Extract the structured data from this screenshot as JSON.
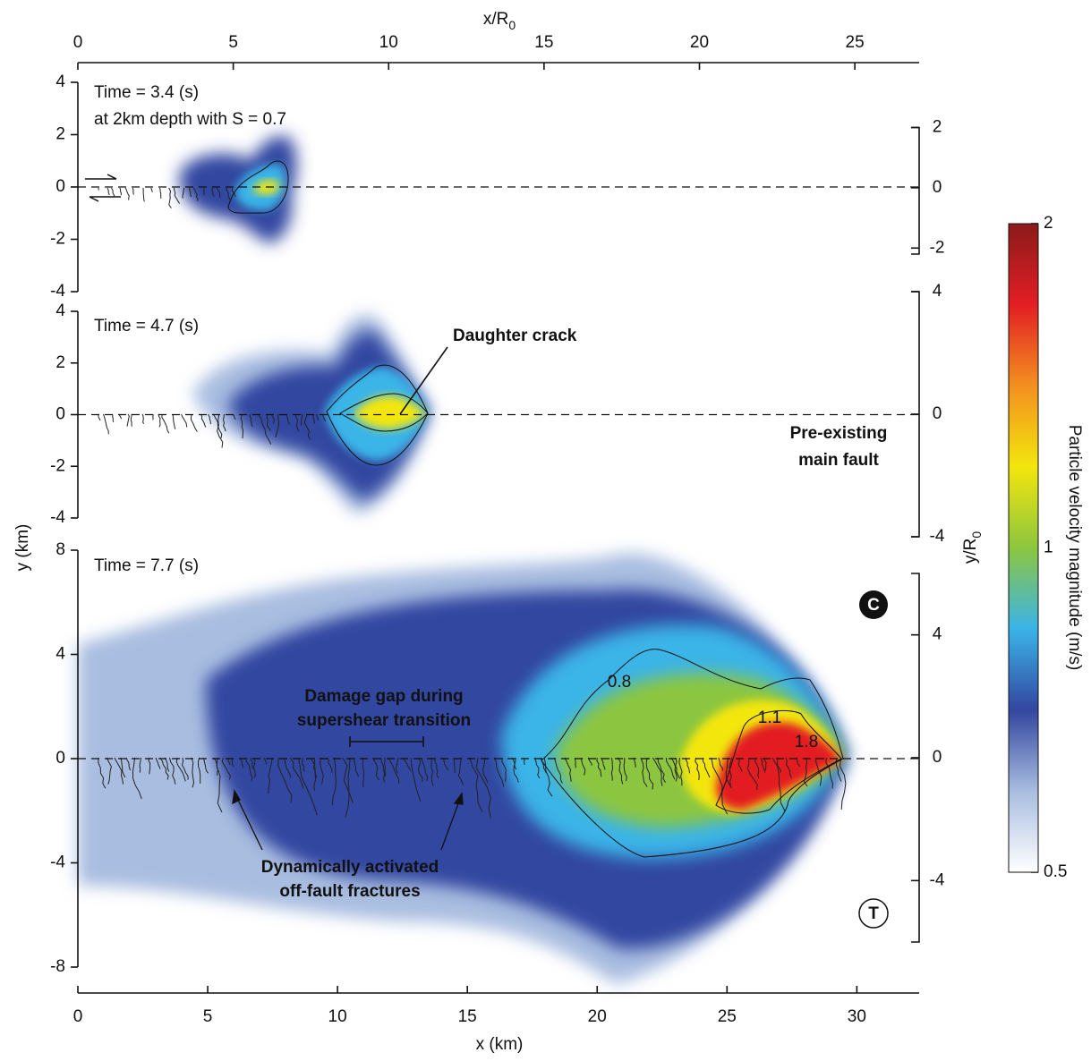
{
  "chart_data": {
    "type": "field",
    "xlabel": "x (km)",
    "xlim": [
      0,
      32.4
    ],
    "xticks": [
      0,
      5,
      10,
      15,
      20,
      25,
      30
    ],
    "x2label": "x/R",
    "x2label_sub": "0",
    "x2lim": [
      0,
      27.07
    ],
    "x2ticks": [
      0,
      5,
      10,
      15,
      20,
      25
    ],
    "ylabel": "y (km)",
    "y2label": "y/R",
    "y2label_sub": "0",
    "panels": [
      {
        "time": "Time = 3.4 (s)",
        "subtitle": "at 2km depth with S = 0.7",
        "ylim": [
          -4,
          4
        ],
        "yticks": [
          4,
          2,
          0,
          -2,
          -4
        ],
        "y2lim": [
          -2.2,
          2
        ],
        "y2ticks": [
          2,
          0,
          -2
        ]
      },
      {
        "time": "Time = 4.7 (s)",
        "ylim": [
          -4,
          4
        ],
        "yticks": [
          4,
          2,
          0,
          -2,
          -4
        ],
        "y2lim": [
          -4,
          4
        ],
        "y2ticks": [
          4,
          0,
          -4
        ]
      },
      {
        "time": "Time = 7.7 (s)",
        "ylim": [
          -8,
          8
        ],
        "yticks": [
          8,
          4,
          0,
          -4,
          -8
        ],
        "y2lim": [
          -6,
          6
        ],
        "y2ticks": [
          4,
          0,
          -4
        ]
      }
    ],
    "colorbar": {
      "label": "Particle velocity magnitude (m/s)",
      "lim": [
        0.5,
        2
      ],
      "ticks": [
        2,
        1,
        0.5
      ],
      "log": true,
      "colors": [
        "#ffffff",
        "#a9bde0",
        "#3346a0",
        "#3ab4e8",
        "#8cc63f",
        "#f3e60d",
        "#f39020",
        "#e31e24",
        "#8b1a1a"
      ]
    },
    "annotations": {
      "daughter_crack": "Daughter crack",
      "main_fault": [
        "Pre-existing",
        "main fault"
      ],
      "damage_gap": [
        "Damage gap during",
        "supershear transition"
      ],
      "fractures": [
        "Dynamically activated",
        "off-fault fractures"
      ],
      "contour_labels": [
        0.8,
        1.1,
        1.8
      ],
      "side_labels": [
        "C",
        "T"
      ]
    }
  }
}
